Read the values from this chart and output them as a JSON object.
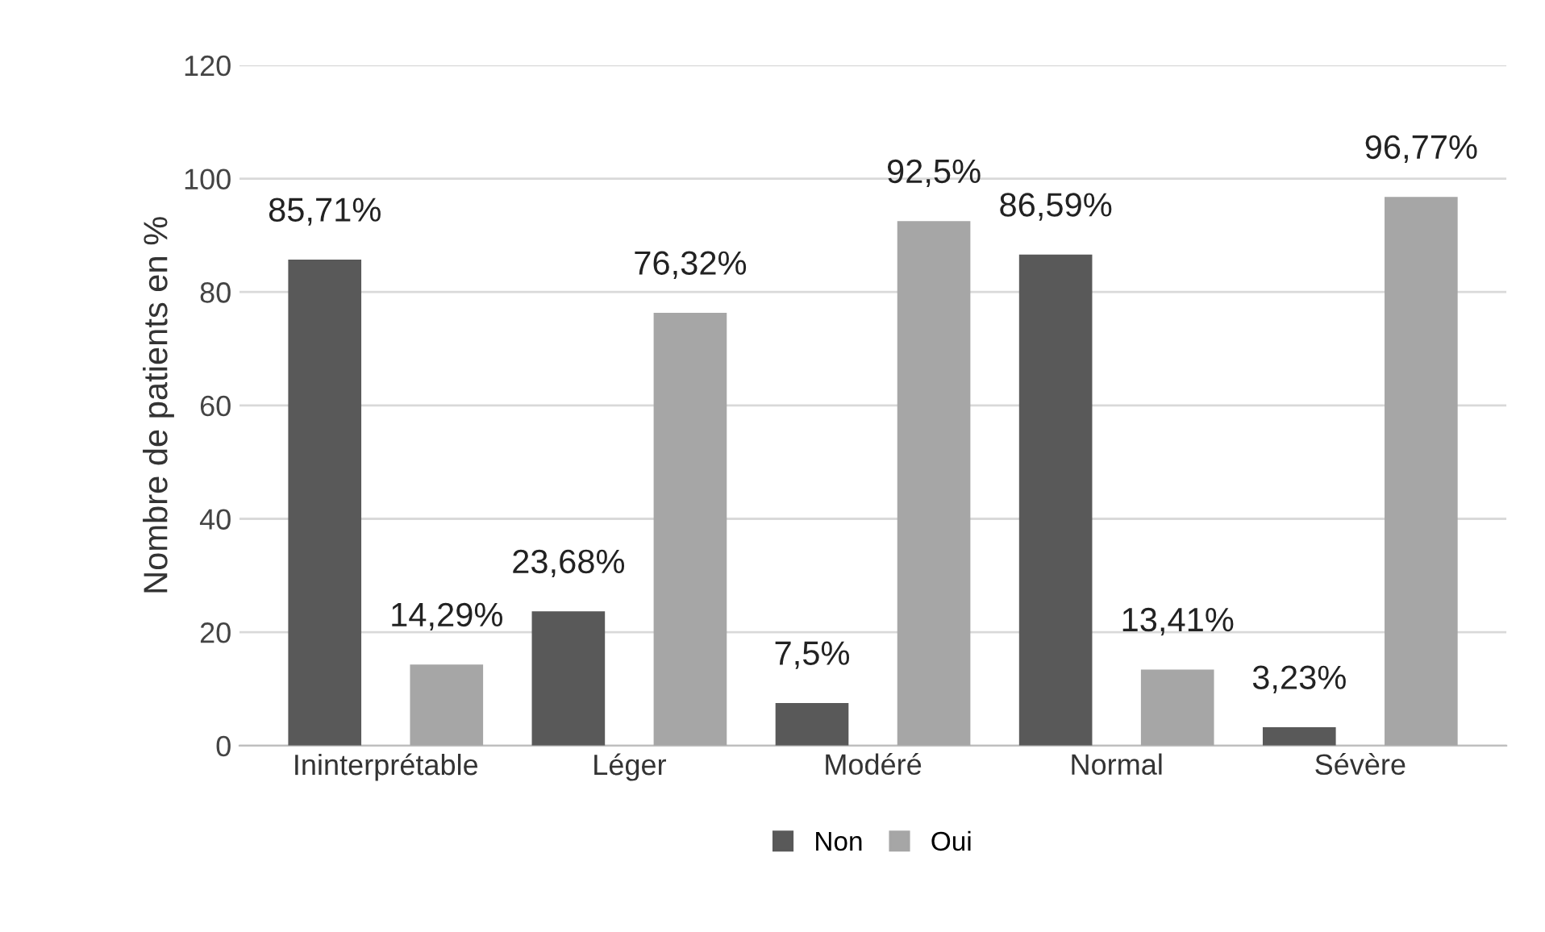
{
  "chart_data": {
    "type": "bar",
    "ylabel": "Nombre de patients en %",
    "categories": [
      "Ininterprétable",
      "Léger",
      "Modéré",
      "Normal",
      "Sévère"
    ],
    "series": [
      {
        "name": "Non",
        "color": "#595959",
        "values": [
          85.71,
          23.68,
          7.5,
          86.59,
          3.23
        ],
        "value_labels": [
          "85,71%",
          "23,68%",
          "7,5%",
          "86,59%",
          "3,23%"
        ]
      },
      {
        "name": "Oui",
        "color": "#a6a6a6",
        "values": [
          14.29,
          76.32,
          92.5,
          13.41,
          96.77
        ],
        "value_labels": [
          "14,29%",
          "76,32%",
          "92,5%",
          "13,41%",
          "96,77%"
        ]
      }
    ],
    "ylim": [
      0,
      120
    ],
    "yticks": [
      0,
      20,
      40,
      60,
      80,
      100,
      120
    ],
    "grid": "y",
    "legend": "bottom"
  }
}
